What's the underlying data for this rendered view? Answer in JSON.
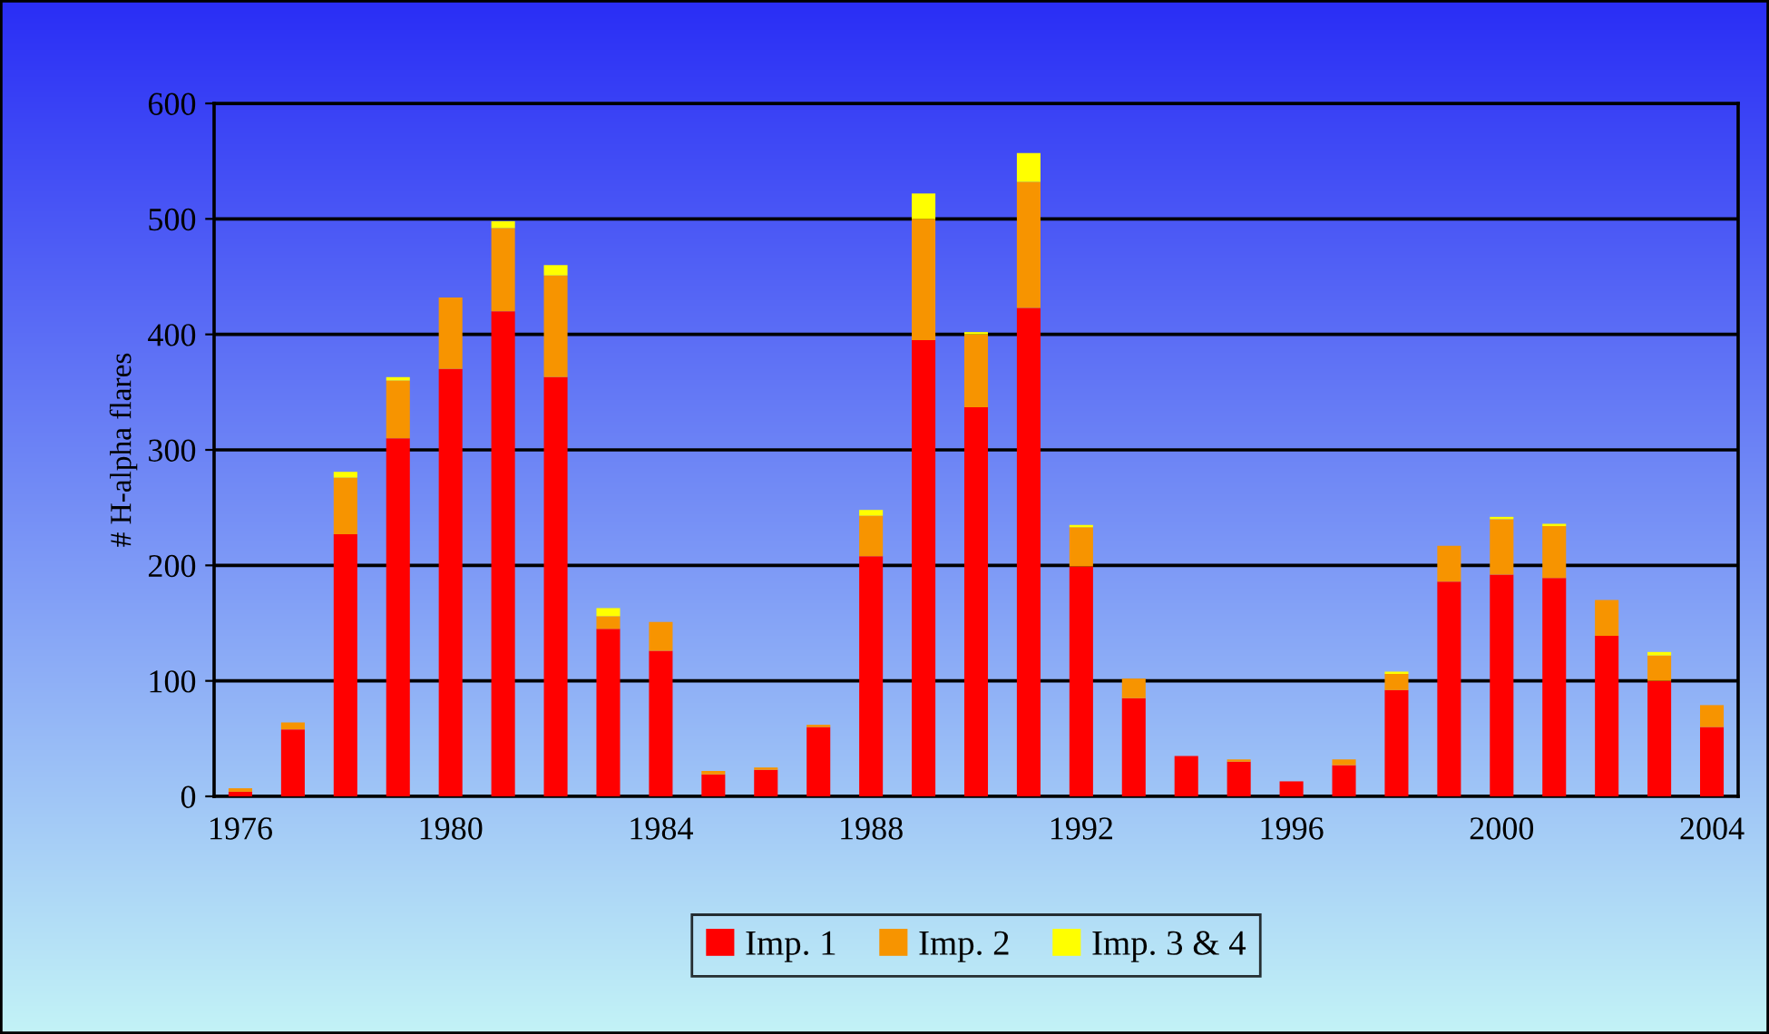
{
  "chart_data": {
    "type": "bar",
    "stacked": true,
    "ylabel": "# H-alpha flares",
    "categories": [
      "1976",
      null,
      null,
      null,
      "1980",
      null,
      null,
      null,
      "1984",
      null,
      null,
      null,
      "1988",
      null,
      null,
      null,
      "1992",
      null,
      null,
      null,
      "1996",
      null,
      null,
      null,
      "2000",
      null,
      null,
      null,
      "2004"
    ],
    "series": [
      {
        "name": "Imp. 1",
        "color": "#ff0000",
        "values": [
          4,
          58,
          227,
          310,
          370,
          420,
          363,
          145,
          126,
          19,
          23,
          60,
          208,
          395,
          337,
          423,
          199,
          85,
          35,
          30,
          13,
          27,
          92,
          186,
          192,
          189,
          139,
          100,
          60
        ]
      },
      {
        "name": "Imp. 2",
        "color": "#f79400",
        "values": [
          3,
          6,
          49,
          50,
          62,
          72,
          88,
          11,
          25,
          3,
          2,
          2,
          35,
          105,
          63,
          109,
          34,
          17,
          0,
          2,
          0,
          5,
          14,
          31,
          48,
          45,
          31,
          22,
          19
        ]
      },
      {
        "name": "Imp. 3 & 4",
        "color": "#ffff00",
        "values": [
          0,
          0,
          5,
          3,
          0,
          6,
          9,
          7,
          0,
          0,
          0,
          0,
          5,
          22,
          2,
          25,
          2,
          0,
          0,
          0,
          0,
          0,
          2,
          0,
          2,
          2,
          0,
          3,
          0
        ]
      }
    ],
    "ylim": [
      0,
      600
    ],
    "yticks": [
      0,
      100,
      200,
      300,
      400,
      500,
      600
    ],
    "grid": "y",
    "legend": "bottom"
  }
}
